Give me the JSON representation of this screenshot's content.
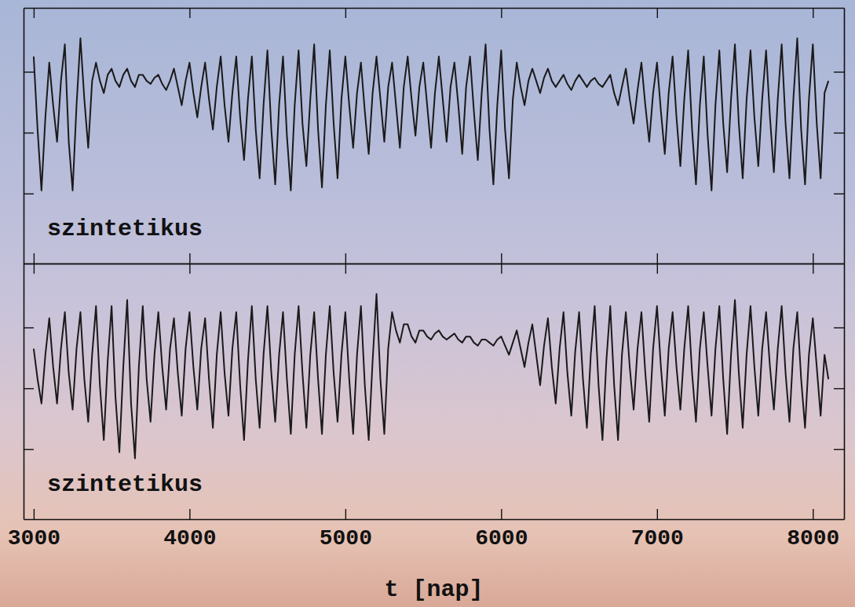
{
  "chart_data": [
    {
      "type": "line",
      "annotation": "szintetikus",
      "tick_labels": false,
      "xlim": [
        2935,
        8200
      ],
      "xticks": [
        3000,
        4000,
        5000,
        6000,
        7000,
        8000
      ],
      "ylim": [
        0,
        4.2
      ],
      "yticks": [
        1.15,
        2.15,
        3.15
      ],
      "x": [
        3000,
        3025,
        3050,
        3075,
        3100,
        3125,
        3150,
        3175,
        3200,
        3225,
        3250,
        3275,
        3300,
        3325,
        3350,
        3375,
        3400,
        3425,
        3450,
        3475,
        3500,
        3525,
        3550,
        3575,
        3600,
        3625,
        3650,
        3675,
        3700,
        3725,
        3750,
        3775,
        3800,
        3825,
        3850,
        3875,
        3900,
        3925,
        3950,
        3975,
        4000,
        4025,
        4050,
        4075,
        4100,
        4125,
        4150,
        4175,
        4200,
        4225,
        4250,
        4275,
        4300,
        4325,
        4350,
        4375,
        4400,
        4425,
        4450,
        4475,
        4500,
        4525,
        4550,
        4575,
        4600,
        4625,
        4650,
        4675,
        4700,
        4725,
        4750,
        4775,
        4800,
        4825,
        4850,
        4875,
        4900,
        4925,
        4950,
        4975,
        5000,
        5025,
        5050,
        5075,
        5100,
        5125,
        5150,
        5175,
        5200,
        5225,
        5250,
        5275,
        5300,
        5325,
        5350,
        5375,
        5400,
        5425,
        5450,
        5475,
        5500,
        5525,
        5550,
        5575,
        5600,
        5625,
        5650,
        5675,
        5700,
        5725,
        5750,
        5775,
        5800,
        5825,
        5850,
        5875,
        5900,
        5925,
        5950,
        5975,
        6000,
        6025,
        6050,
        6075,
        6100,
        6125,
        6150,
        6175,
        6200,
        6225,
        6250,
        6275,
        6300,
        6325,
        6350,
        6375,
        6400,
        6425,
        6450,
        6475,
        6500,
        6525,
        6550,
        6575,
        6600,
        6625,
        6650,
        6675,
        6700,
        6725,
        6750,
        6775,
        6800,
        6825,
        6850,
        6875,
        6900,
        6925,
        6950,
        6975,
        7000,
        7025,
        7050,
        7075,
        7100,
        7125,
        7150,
        7175,
        7200,
        7225,
        7250,
        7275,
        7300,
        7325,
        7350,
        7375,
        7400,
        7425,
        7450,
        7475,
        7500,
        7525,
        7550,
        7575,
        7600,
        7625,
        7650,
        7675,
        7700,
        7725,
        7750,
        7775,
        7800,
        7825,
        7850,
        7875,
        7900,
        7925,
        7950,
        7975,
        8000,
        8025,
        8050,
        8075,
        8100
      ],
      "series": [
        {
          "color": "#1a1a1a",
          "values": [
            3.4,
            2.2,
            1.2,
            2.4,
            3.3,
            2.6,
            2.0,
            3.0,
            3.6,
            2.0,
            1.2,
            2.6,
            3.7,
            2.7,
            1.9,
            3.0,
            3.3,
            3.0,
            2.8,
            3.1,
            3.2,
            3.0,
            2.9,
            3.1,
            3.2,
            3.0,
            2.9,
            3.1,
            3.1,
            3.0,
            2.95,
            3.05,
            3.1,
            2.95,
            2.85,
            3.0,
            3.2,
            2.9,
            2.6,
            3.0,
            3.3,
            2.8,
            2.4,
            2.9,
            3.3,
            2.7,
            2.2,
            2.9,
            3.4,
            2.6,
            2.0,
            2.8,
            3.4,
            2.4,
            1.7,
            2.7,
            3.4,
            2.2,
            1.4,
            2.6,
            3.5,
            2.2,
            1.3,
            2.6,
            3.4,
            2.1,
            1.2,
            2.6,
            3.5,
            2.3,
            1.6,
            2.7,
            3.6,
            2.2,
            1.25,
            2.6,
            3.5,
            2.3,
            1.4,
            2.7,
            3.4,
            2.6,
            1.9,
            2.8,
            3.3,
            2.5,
            1.8,
            2.8,
            3.4,
            2.7,
            2.0,
            2.9,
            3.3,
            2.6,
            1.9,
            2.9,
            3.4,
            2.7,
            2.1,
            2.9,
            3.3,
            2.6,
            1.9,
            2.8,
            3.4,
            2.7,
            2.0,
            2.9,
            3.3,
            2.6,
            1.8,
            2.9,
            3.4,
            2.5,
            1.7,
            2.8,
            3.6,
            2.2,
            1.3,
            2.6,
            3.5,
            2.2,
            1.4,
            2.7,
            3.3,
            2.9,
            2.6,
            3.0,
            3.2,
            3.0,
            2.8,
            3.05,
            3.2,
            3.0,
            2.9,
            3.0,
            3.1,
            2.95,
            2.85,
            3.0,
            3.1,
            3.0,
            2.9,
            3.0,
            3.05,
            2.95,
            2.9,
            3.0,
            3.1,
            2.8,
            2.6,
            2.9,
            3.2,
            2.7,
            2.3,
            2.85,
            3.3,
            2.6,
            2.0,
            2.8,
            3.3,
            2.5,
            1.8,
            2.8,
            3.4,
            2.4,
            1.6,
            2.7,
            3.5,
            2.2,
            1.3,
            2.6,
            3.4,
            2.1,
            1.2,
            2.6,
            3.5,
            2.3,
            1.5,
            2.7,
            3.6,
            2.3,
            1.4,
            2.7,
            3.5,
            2.4,
            1.6,
            2.7,
            3.5,
            2.4,
            1.5,
            2.7,
            3.6,
            2.3,
            1.4,
            2.7,
            3.7,
            2.2,
            1.3,
            2.7,
            3.6,
            2.3,
            1.4,
            2.8,
            3.0
          ]
        }
      ]
    },
    {
      "type": "line",
      "annotation": "szintetikus",
      "tick_labels": "x",
      "x_label": "t [nap]",
      "xlim": [
        2935,
        8200
      ],
      "xticks": [
        3000,
        4000,
        5000,
        6000,
        7000,
        8000
      ],
      "ylim": [
        0,
        4.2
      ],
      "yticks": [
        1.15,
        2.15,
        3.15
      ],
      "x": [
        3000,
        3025,
        3050,
        3075,
        3100,
        3125,
        3150,
        3175,
        3200,
        3225,
        3250,
        3275,
        3300,
        3325,
        3350,
        3375,
        3400,
        3425,
        3450,
        3475,
        3500,
        3525,
        3550,
        3575,
        3600,
        3625,
        3650,
        3675,
        3700,
        3725,
        3750,
        3775,
        3800,
        3825,
        3850,
        3875,
        3900,
        3925,
        3950,
        3975,
        4000,
        4025,
        4050,
        4075,
        4100,
        4125,
        4150,
        4175,
        4200,
        4225,
        4250,
        4275,
        4300,
        4325,
        4350,
        4375,
        4400,
        4425,
        4450,
        4475,
        4500,
        4525,
        4550,
        4575,
        4600,
        4625,
        4650,
        4675,
        4700,
        4725,
        4750,
        4775,
        4800,
        4825,
        4850,
        4875,
        4900,
        4925,
        4950,
        4975,
        5000,
        5025,
        5050,
        5075,
        5100,
        5125,
        5150,
        5175,
        5200,
        5225,
        5250,
        5275,
        5300,
        5325,
        5350,
        5375,
        5400,
        5425,
        5450,
        5475,
        5500,
        5525,
        5550,
        5575,
        5600,
        5625,
        5650,
        5675,
        5700,
        5725,
        5750,
        5775,
        5800,
        5825,
        5850,
        5875,
        5900,
        5925,
        5950,
        5975,
        6000,
        6025,
        6050,
        6075,
        6100,
        6125,
        6150,
        6175,
        6200,
        6225,
        6250,
        6275,
        6300,
        6325,
        6350,
        6375,
        6400,
        6425,
        6450,
        6475,
        6500,
        6525,
        6550,
        6575,
        6600,
        6625,
        6650,
        6675,
        6700,
        6725,
        6750,
        6775,
        6800,
        6825,
        6850,
        6875,
        6900,
        6925,
        6950,
        6975,
        7000,
        7025,
        7050,
        7075,
        7100,
        7125,
        7150,
        7175,
        7200,
        7225,
        7250,
        7275,
        7300,
        7325,
        7350,
        7375,
        7400,
        7425,
        7450,
        7475,
        7500,
        7525,
        7550,
        7575,
        7600,
        7625,
        7650,
        7675,
        7700,
        7725,
        7750,
        7775,
        7800,
        7825,
        7850,
        7875,
        7900,
        7925,
        7950,
        7975,
        8000,
        8025,
        8050,
        8075,
        8100
      ],
      "series": [
        {
          "color": "#1a1a1a",
          "values": [
            2.8,
            2.3,
            1.9,
            2.7,
            3.3,
            2.5,
            1.9,
            2.8,
            3.4,
            2.4,
            1.8,
            2.8,
            3.4,
            2.3,
            1.6,
            2.7,
            3.5,
            2.2,
            1.3,
            2.6,
            3.5,
            2.0,
            1.1,
            2.5,
            3.6,
            1.9,
            1.0,
            2.5,
            3.5,
            2.3,
            1.6,
            2.7,
            3.4,
            2.5,
            1.8,
            2.8,
            3.3,
            2.4,
            1.7,
            2.8,
            3.4,
            2.5,
            1.8,
            2.8,
            3.3,
            2.3,
            1.5,
            2.7,
            3.4,
            2.4,
            1.7,
            2.8,
            3.4,
            2.2,
            1.3,
            2.6,
            3.5,
            2.3,
            1.5,
            2.7,
            3.5,
            2.4,
            1.6,
            2.7,
            3.4,
            2.3,
            1.4,
            2.7,
            3.5,
            2.4,
            1.5,
            2.7,
            3.4,
            2.3,
            1.4,
            2.7,
            3.5,
            2.4,
            1.6,
            2.7,
            3.4,
            2.3,
            1.4,
            2.7,
            3.5,
            2.2,
            1.3,
            2.6,
            3.7,
            2.3,
            1.4,
            2.8,
            3.4,
            3.1,
            2.9,
            3.2,
            3.2,
            3.0,
            2.9,
            3.1,
            3.1,
            3.0,
            2.95,
            3.05,
            3.1,
            3.0,
            2.95,
            3.0,
            3.05,
            2.95,
            2.9,
            3.0,
            3.0,
            2.9,
            2.85,
            2.95,
            2.95,
            2.9,
            2.85,
            2.95,
            3.0,
            2.85,
            2.7,
            2.9,
            3.1,
            2.8,
            2.5,
            2.9,
            3.2,
            2.7,
            2.2,
            2.85,
            3.3,
            2.5,
            1.9,
            2.8,
            3.4,
            2.4,
            1.7,
            2.75,
            3.4,
            2.3,
            1.5,
            2.7,
            3.5,
            2.2,
            1.3,
            2.6,
            3.5,
            2.2,
            1.3,
            2.7,
            3.4,
            2.5,
            1.8,
            2.8,
            3.4,
            2.4,
            1.6,
            2.8,
            3.5,
            2.5,
            1.7,
            2.8,
            3.4,
            2.5,
            1.8,
            2.8,
            3.5,
            2.4,
            1.6,
            2.8,
            3.4,
            2.5,
            1.7,
            2.8,
            3.5,
            2.3,
            1.4,
            2.7,
            3.6,
            2.4,
            1.5,
            2.7,
            3.5,
            2.5,
            1.7,
            2.8,
            3.4,
            2.5,
            1.8,
            2.8,
            3.5,
            2.4,
            1.6,
            2.8,
            3.4,
            2.3,
            1.5,
            2.7,
            3.3,
            2.5,
            1.7,
            2.7,
            2.3
          ]
        }
      ]
    }
  ]
}
